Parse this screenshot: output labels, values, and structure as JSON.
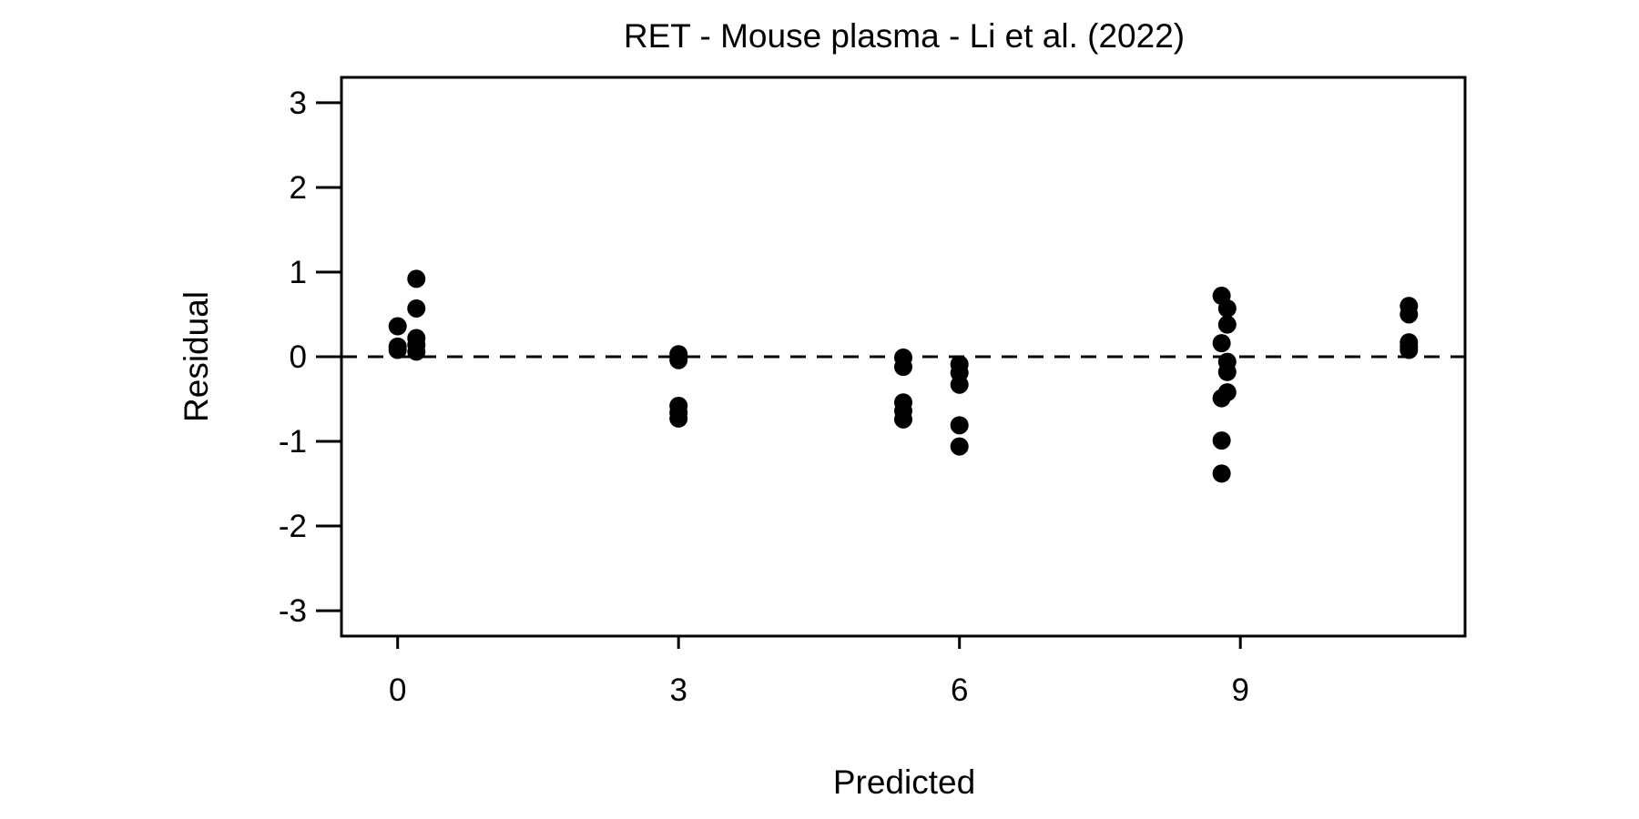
{
  "chart_data": {
    "type": "scatter",
    "title": "RET - Mouse plasma - Li et al. (2022)",
    "xlabel": "Predicted",
    "ylabel": "Residual",
    "xlim": [
      -0.6,
      11.4
    ],
    "ylim": [
      -3.3,
      3.3
    ],
    "x_ticks": [
      0,
      3,
      6,
      9
    ],
    "y_ticks": [
      -3,
      -2,
      -1,
      0,
      1,
      2,
      3
    ],
    "reference_line": {
      "y": 0,
      "style": "dashed"
    },
    "grid": false,
    "marker_color": "#000000",
    "points": [
      {
        "x": 0.0,
        "y": 0.36
      },
      {
        "x": 0.0,
        "y": 0.12
      },
      {
        "x": 0.0,
        "y": 0.08
      },
      {
        "x": 0.2,
        "y": 0.92
      },
      {
        "x": 0.2,
        "y": 0.57
      },
      {
        "x": 0.2,
        "y": 0.22
      },
      {
        "x": 0.2,
        "y": 0.14
      },
      {
        "x": 0.2,
        "y": 0.06
      },
      {
        "x": 3.0,
        "y": 0.03
      },
      {
        "x": 3.0,
        "y": -0.04
      },
      {
        "x": 3.0,
        "y": -0.58
      },
      {
        "x": 3.0,
        "y": -0.66
      },
      {
        "x": 3.0,
        "y": -0.73
      },
      {
        "x": 5.4,
        "y": -0.01
      },
      {
        "x": 5.4,
        "y": -0.12
      },
      {
        "x": 5.4,
        "y": -0.54
      },
      {
        "x": 5.4,
        "y": -0.64
      },
      {
        "x": 5.4,
        "y": -0.74
      },
      {
        "x": 6.0,
        "y": -0.09
      },
      {
        "x": 6.0,
        "y": -0.19
      },
      {
        "x": 6.0,
        "y": -0.33
      },
      {
        "x": 6.0,
        "y": -0.81
      },
      {
        "x": 6.0,
        "y": -1.06
      },
      {
        "x": 8.8,
        "y": 0.72
      },
      {
        "x": 8.8,
        "y": 0.16
      },
      {
        "x": 8.8,
        "y": -0.49
      },
      {
        "x": 8.8,
        "y": -0.99
      },
      {
        "x": 8.8,
        "y": -1.38
      },
      {
        "x": 8.86,
        "y": 0.57
      },
      {
        "x": 8.86,
        "y": 0.38
      },
      {
        "x": 8.86,
        "y": -0.06
      },
      {
        "x": 8.86,
        "y": -0.18
      },
      {
        "x": 8.86,
        "y": -0.42
      },
      {
        "x": 10.8,
        "y": 0.6
      },
      {
        "x": 10.8,
        "y": 0.5
      },
      {
        "x": 10.8,
        "y": 0.17
      },
      {
        "x": 10.8,
        "y": 0.12
      },
      {
        "x": 10.8,
        "y": 0.08
      }
    ]
  }
}
